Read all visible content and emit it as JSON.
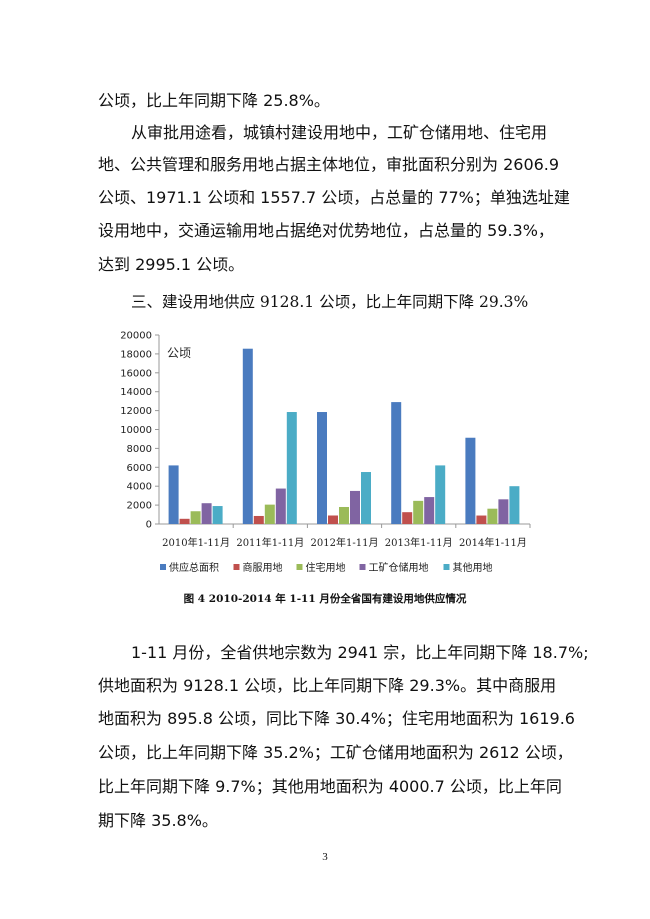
{
  "paragraphs_top": [
    "公顷，比上年同期下降 25.8%。",
    "从审批用途看，城镇村建设用地中，工矿仓储用地、住宅用",
    "地、公共管理和服务用地占据主体地位，审批面积分别为 2606.9",
    "公顷、1971.1 公顷和 1557.7 公顷，占总量的 77%；单独选址建",
    "设用地中，交通运输用地占据绝对优势地位，占总量的 59.3%，",
    "达到 2995.1 公顷。"
  ],
  "section_heading": "三、建设用地供应 9128.1 公顷，比上年同期下降 29.3%",
  "chart_data": {
    "type": "bar",
    "ylabel": "公顷",
    "ylim": [
      0,
      20000
    ],
    "yticks": [
      "0",
      "2000",
      "4000",
      "6000",
      "8000",
      "10000",
      "12000",
      "14000",
      "16000",
      "18000",
      "20000"
    ],
    "categories": [
      "2010年1-11月",
      "2011年1-11月",
      "2012年1-11月",
      "2013年1-11月",
      "2014年1-11月"
    ],
    "series": [
      {
        "name": "供应总面积",
        "color": "#4a7bbf",
        "values": [
          6200,
          18550,
          11850,
          12900,
          9128.1
        ]
      },
      {
        "name": "商服用地",
        "color": "#c0504d",
        "values": [
          550,
          850,
          900,
          1250,
          895.8
        ]
      },
      {
        "name": "住宅用地",
        "color": "#9bbb59",
        "values": [
          1350,
          2050,
          1800,
          2450,
          1619.6
        ]
      },
      {
        "name": "工矿仓储用地",
        "color": "#8064a2",
        "values": [
          2200,
          3750,
          3500,
          2850,
          2612
        ]
      },
      {
        "name": "其他用地",
        "color": "#4bacc6",
        "values": [
          1900,
          11850,
          5500,
          6200,
          4000.7
        ]
      }
    ],
    "grid": false,
    "legend": "bottom"
  },
  "caption": "图 4 2010-2014 年 1-11 月份全省国有建设用地供应情况",
  "paragraphs_bottom": [
    "1-11 月份，全省供地宗数为 2941 宗，比上年同期下降 18.7%;",
    "供地面积为 9128.1 公顷，比上年同期下降 29.3%。其中商服用",
    "地面积为 895.8 公顷，同比下降 30.4%；住宅用地面积为 1619.6",
    "公顷，比上年同期下降 35.2%；工矿仓储用地面积为 2612 公顷，",
    "比上年同期下降 9.7%；其他用地面积为 4000.7 公顷，比上年同",
    "期下降 35.8%。"
  ],
  "page_number": "3"
}
